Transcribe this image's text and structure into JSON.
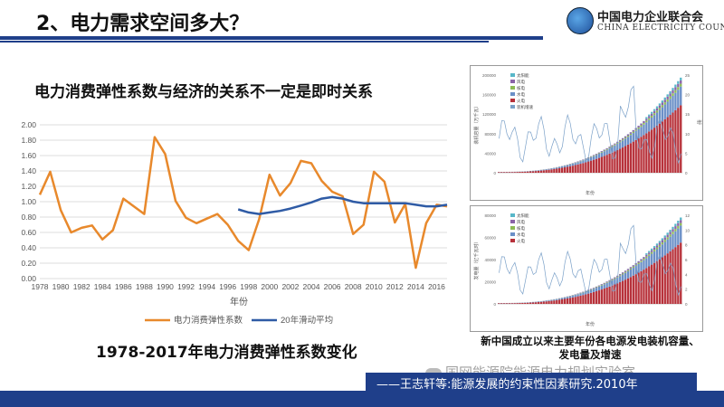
{
  "slide": {
    "title": "2、电力需求空间多大？",
    "subtitle": "电力消费弹性系数与经济的关系不一定是即时关系",
    "main_caption": "1978-2017年电力消费弹性系数变化",
    "right_caption_line1": "新中国成立以来主要年份各电源发电装机容量、",
    "right_caption_line2": "发电量及增速",
    "footer_text": "——王志轩等:能源发展的约束性因素研究.2010年",
    "watermark": "国网能源院能源电力规划实验室"
  },
  "logo": {
    "cn": "中国电力企业联合会",
    "en": "CHINA ELECTRICITY COUNCIL"
  },
  "colors": {
    "orange": "#e8892c",
    "blue": "#2f5ba5",
    "brand": "#1f3f8a"
  },
  "chart_data": {
    "type": "line",
    "title": "",
    "xlabel": "年份",
    "ylabel": "",
    "ylim": [
      0,
      2.0
    ],
    "yticks": [
      "0.00",
      "0.20",
      "0.40",
      "0.60",
      "0.80",
      "1.00",
      "1.20",
      "1.40",
      "1.60",
      "1.80",
      "2.00"
    ],
    "xticks": [
      "1978",
      "1980",
      "1982",
      "1984",
      "1986",
      "1988",
      "1990",
      "1992",
      "1994",
      "1996",
      "1998",
      "2000",
      "2002",
      "2004",
      "2006",
      "2008",
      "2010",
      "2012",
      "2014",
      "2016"
    ],
    "legend_position": "bottom",
    "x": [
      1978,
      1979,
      1980,
      1981,
      1982,
      1983,
      1984,
      1985,
      1986,
      1987,
      1988,
      1989,
      1990,
      1991,
      1992,
      1993,
      1994,
      1995,
      1996,
      1997,
      1998,
      1999,
      2000,
      2001,
      2002,
      2003,
      2004,
      2005,
      2006,
      2007,
      2008,
      2009,
      2010,
      2011,
      2012,
      2013,
      2014,
      2015,
      2016,
      2017
    ],
    "series": [
      {
        "name": "电力消费弹性系数",
        "color": "#e8892c",
        "values": [
          1.09,
          1.39,
          0.89,
          0.6,
          0.66,
          0.69,
          0.51,
          0.63,
          1.04,
          0.94,
          0.84,
          1.84,
          1.62,
          1.01,
          0.79,
          0.72,
          0.78,
          0.84,
          0.7,
          0.49,
          0.37,
          0.77,
          1.35,
          1.08,
          1.24,
          1.53,
          1.5,
          1.27,
          1.13,
          1.07,
          0.58,
          0.7,
          1.39,
          1.26,
          0.73,
          0.97,
          0.14,
          0.72,
          0.96,
          0.94
        ]
      },
      {
        "name": "20年滑动平均",
        "color": "#2f5ba5",
        "x": [
          1997,
          1998,
          1999,
          2000,
          2001,
          2002,
          2003,
          2004,
          2005,
          2006,
          2007,
          2008,
          2009,
          2010,
          2011,
          2012,
          2013,
          2014,
          2015,
          2016,
          2017
        ],
        "values": [
          0.9,
          0.86,
          0.84,
          0.86,
          0.88,
          0.91,
          0.95,
          0.99,
          1.04,
          1.06,
          1.04,
          1.0,
          0.98,
          0.98,
          0.98,
          0.98,
          0.98,
          0.96,
          0.94,
          0.94,
          0.96
        ]
      }
    ]
  },
  "inset_top": {
    "legend": [
      "太阳能",
      "风电",
      "核电",
      "水电",
      "火电",
      "装机增速"
    ],
    "ylabel": "装机容量（万千瓦）",
    "xlabel": "年份",
    "right_axis_label": "增速",
    "yticks": [
      "0",
      "40000",
      "80000",
      "120000",
      "160000",
      "200000"
    ],
    "ryticks": [
      "0",
      "5",
      "10",
      "15",
      "20",
      "25"
    ]
  },
  "inset_bottom": {
    "legend": [
      "太阳能",
      "风电",
      "核电",
      "水电",
      "火电"
    ],
    "ylabel": "发电量（亿千瓦时）",
    "xlabel": "年份",
    "yticks": [
      "0",
      "20000",
      "40000",
      "60000",
      "80000"
    ],
    "ryticks": [
      "0",
      "2",
      "4",
      "6",
      "8",
      "10",
      "12"
    ]
  }
}
